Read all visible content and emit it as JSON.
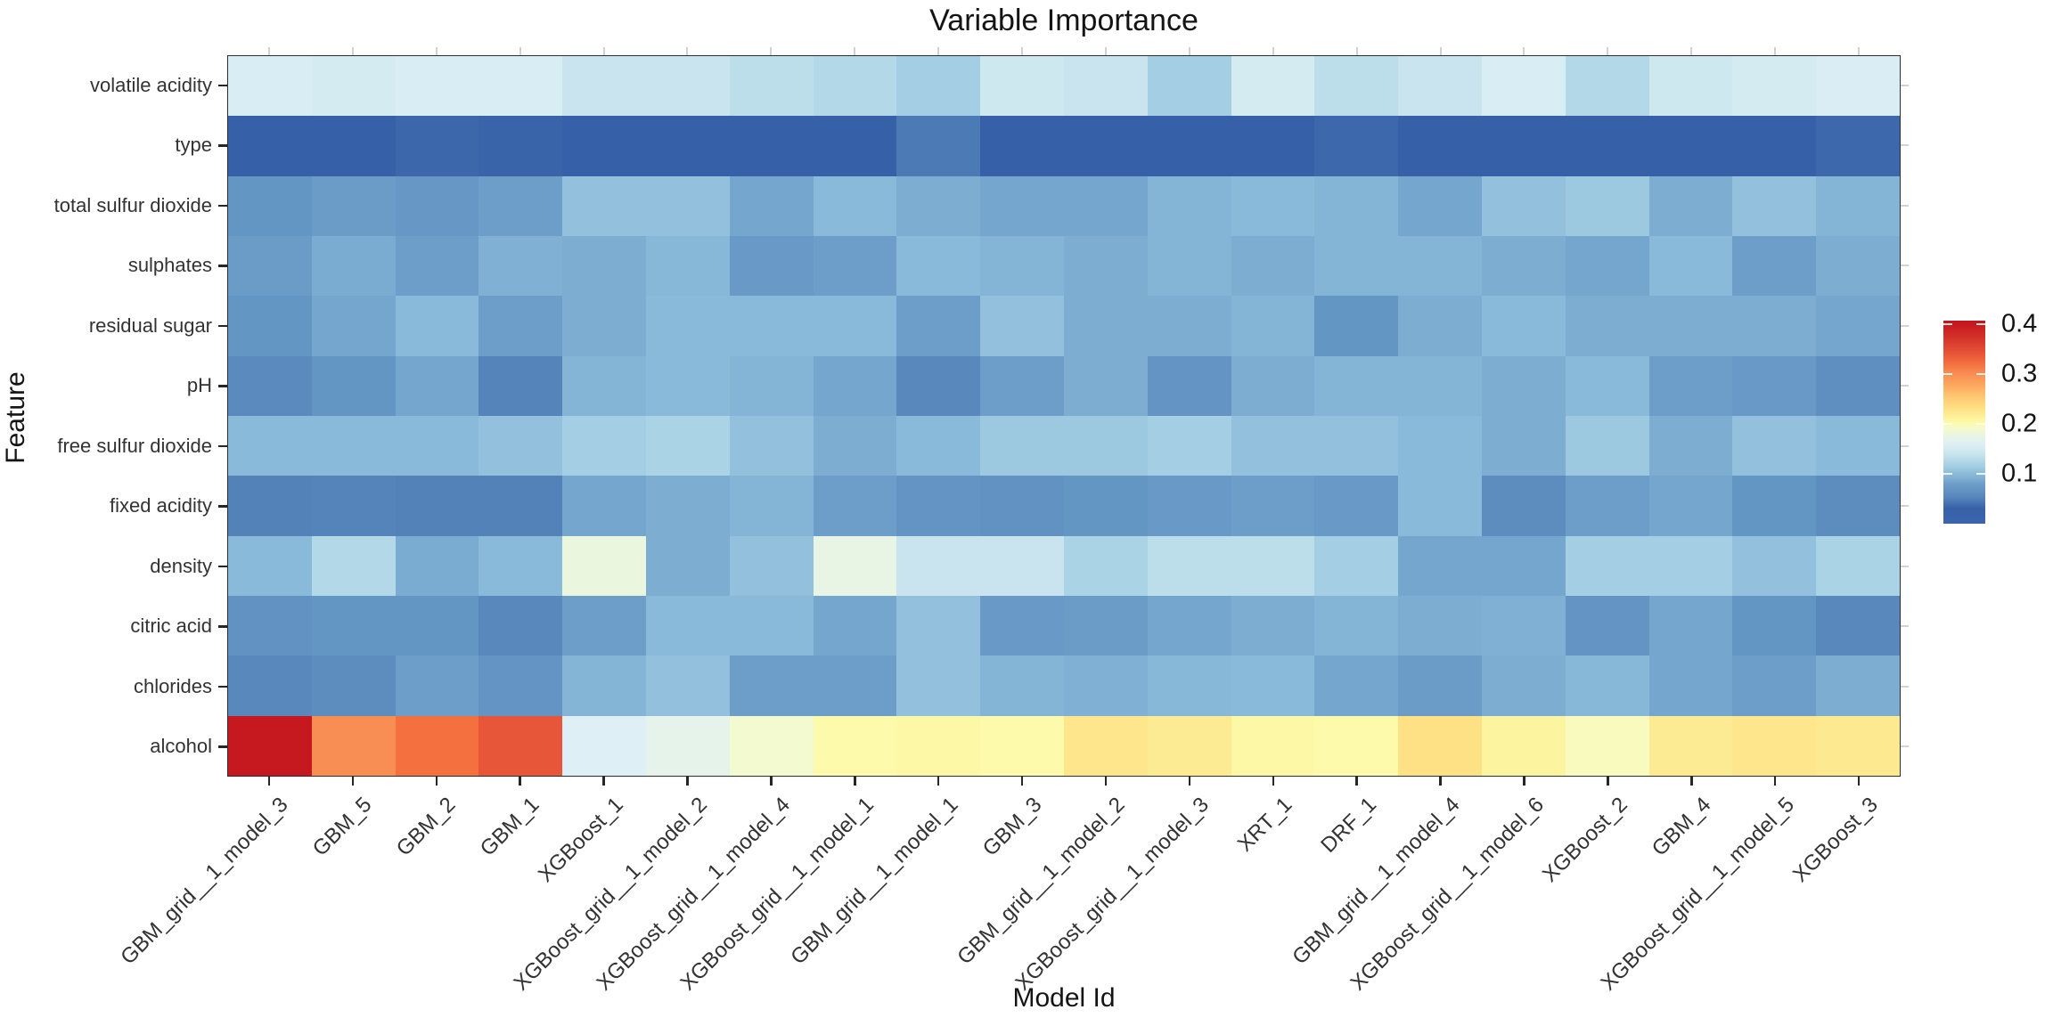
{
  "title": "Variable Importance",
  "x_axis": {
    "label": "Model Id"
  },
  "y_axis": {
    "label": "Feature"
  },
  "legend": {
    "tick_labels": [
      "0.4",
      "0.3",
      "0.2",
      "0.1"
    ],
    "tick_values": [
      0.4,
      0.3,
      0.2,
      0.1
    ],
    "min": 0.0,
    "max": 0.407
  },
  "chart_data": {
    "type": "heatmap",
    "title": "Variable Importance",
    "xlabel": "Model Id",
    "ylabel": "Feature",
    "legend_position": "right",
    "grid": false,
    "x": [
      "GBM_grid__1_model_3",
      "GBM_5",
      "GBM_2",
      "GBM_1",
      "XGBoost_1",
      "XGBoost_grid__1_model_2",
      "XGBoost_grid__1_model_4",
      "XGBoost_grid__1_model_1",
      "GBM_grid__1_model_1",
      "GBM_3",
      "GBM_grid__1_model_2",
      "XGBoost_grid__1_model_3",
      "XRT_1",
      "DRF_1",
      "GBM_grid__1_model_4",
      "XGBoost_grid__1_model_6",
      "XGBoost_2",
      "GBM_4",
      "XGBoost_grid__1_model_5",
      "XGBoost_3"
    ],
    "y": [
      "volatile acidity",
      "type",
      "total sulfur dioxide",
      "sulphates",
      "residual sugar",
      "pH",
      "free sulfur dioxide",
      "fixed acidity",
      "density",
      "citric acid",
      "chlorides",
      "alcohol"
    ],
    "value_range": [
      0.0,
      0.41
    ],
    "values": [
      [
        0.155,
        0.15,
        0.155,
        0.155,
        0.14,
        0.14,
        0.13,
        0.125,
        0.115,
        0.145,
        0.14,
        0.115,
        0.15,
        0.13,
        0.14,
        0.155,
        0.125,
        0.145,
        0.15,
        0.156
      ],
      [
        0.028,
        0.028,
        0.034,
        0.032,
        0.03,
        0.03,
        0.028,
        0.028,
        0.045,
        0.03,
        0.028,
        0.03,
        0.03,
        0.035,
        0.03,
        0.03,
        0.03,
        0.03,
        0.03,
        0.035
      ],
      [
        0.07,
        0.078,
        0.072,
        0.08,
        0.105,
        0.105,
        0.085,
        0.1,
        0.09,
        0.085,
        0.085,
        0.095,
        0.1,
        0.095,
        0.085,
        0.105,
        0.11,
        0.09,
        0.105,
        0.095
      ],
      [
        0.078,
        0.088,
        0.08,
        0.092,
        0.09,
        0.098,
        0.075,
        0.08,
        0.1,
        0.095,
        0.09,
        0.095,
        0.09,
        0.095,
        0.095,
        0.09,
        0.085,
        0.1,
        0.08,
        0.09
      ],
      [
        0.07,
        0.085,
        0.1,
        0.08,
        0.09,
        0.1,
        0.1,
        0.1,
        0.08,
        0.105,
        0.09,
        0.09,
        0.095,
        0.07,
        0.09,
        0.1,
        0.09,
        0.09,
        0.09,
        0.085
      ],
      [
        0.058,
        0.07,
        0.085,
        0.052,
        0.095,
        0.1,
        0.095,
        0.085,
        0.055,
        0.08,
        0.09,
        0.068,
        0.09,
        0.095,
        0.095,
        0.09,
        0.1,
        0.08,
        0.075,
        0.062
      ],
      [
        0.1,
        0.1,
        0.1,
        0.105,
        0.115,
        0.12,
        0.105,
        0.09,
        0.1,
        0.11,
        0.11,
        0.115,
        0.105,
        0.105,
        0.1,
        0.09,
        0.11,
        0.09,
        0.105,
        0.1
      ],
      [
        0.05,
        0.052,
        0.05,
        0.05,
        0.085,
        0.09,
        0.095,
        0.08,
        0.068,
        0.065,
        0.07,
        0.075,
        0.08,
        0.075,
        0.1,
        0.06,
        0.08,
        0.085,
        0.07,
        0.06
      ],
      [
        0.1,
        0.125,
        0.088,
        0.1,
        0.18,
        0.09,
        0.105,
        0.175,
        0.14,
        0.14,
        0.12,
        0.13,
        0.13,
        0.115,
        0.085,
        0.085,
        0.115,
        0.115,
        0.105,
        0.12
      ],
      [
        0.065,
        0.07,
        0.07,
        0.055,
        0.08,
        0.1,
        0.1,
        0.085,
        0.105,
        0.075,
        0.078,
        0.085,
        0.09,
        0.095,
        0.09,
        0.092,
        0.068,
        0.085,
        0.07,
        0.055
      ],
      [
        0.055,
        0.06,
        0.08,
        0.068,
        0.095,
        0.105,
        0.08,
        0.08,
        0.105,
        0.095,
        0.092,
        0.098,
        0.1,
        0.085,
        0.078,
        0.09,
        0.098,
        0.085,
        0.08,
        0.09
      ],
      [
        0.4,
        0.3,
        0.32,
        0.34,
        0.16,
        0.17,
        0.19,
        0.2,
        0.205,
        0.2,
        0.225,
        0.22,
        0.205,
        0.2,
        0.23,
        0.21,
        0.195,
        0.22,
        0.225,
        0.222
      ]
    ],
    "colormap": {
      "name": "RdYlBu_r",
      "stops": [
        [
          0.0,
          "#3B66AC"
        ],
        [
          0.03,
          "#3661A8"
        ],
        [
          0.05,
          "#5282B8"
        ],
        [
          0.06,
          "#5D8DBF"
        ],
        [
          0.07,
          "#6496C4"
        ],
        [
          0.08,
          "#6D9DC9"
        ],
        [
          0.09,
          "#7DAED2"
        ],
        [
          0.1,
          "#8ABAD9"
        ],
        [
          0.11,
          "#9CC8E0"
        ],
        [
          0.12,
          "#AAD3E5"
        ],
        [
          0.13,
          "#BCDEEA"
        ],
        [
          0.14,
          "#C9E4EE"
        ],
        [
          0.15,
          "#D4EBF2"
        ],
        [
          0.16,
          "#DEEFF5"
        ],
        [
          0.17,
          "#E5F3EA"
        ],
        [
          0.18,
          "#EBF6DF"
        ],
        [
          0.19,
          "#F4FAD0"
        ],
        [
          0.2,
          "#FDFBAB"
        ],
        [
          0.21,
          "#FDF4A0"
        ],
        [
          0.22,
          "#FDEB93"
        ],
        [
          0.23,
          "#FDE184"
        ],
        [
          0.25,
          "#FDCE74"
        ],
        [
          0.28,
          "#FDA55D"
        ],
        [
          0.3,
          "#F98E55"
        ],
        [
          0.32,
          "#F4703F"
        ],
        [
          0.34,
          "#E85639"
        ],
        [
          0.36,
          "#DC4030"
        ],
        [
          0.38,
          "#D02B25"
        ],
        [
          0.4,
          "#C6191F"
        ],
        [
          0.41,
          "#C1121D"
        ]
      ]
    }
  },
  "style": {
    "axis_color": "#2e2e2e",
    "tick_color": "#262626",
    "minor_tick_color": "#d2d2d2",
    "label_color": "#333333",
    "background": "#ffffff"
  }
}
